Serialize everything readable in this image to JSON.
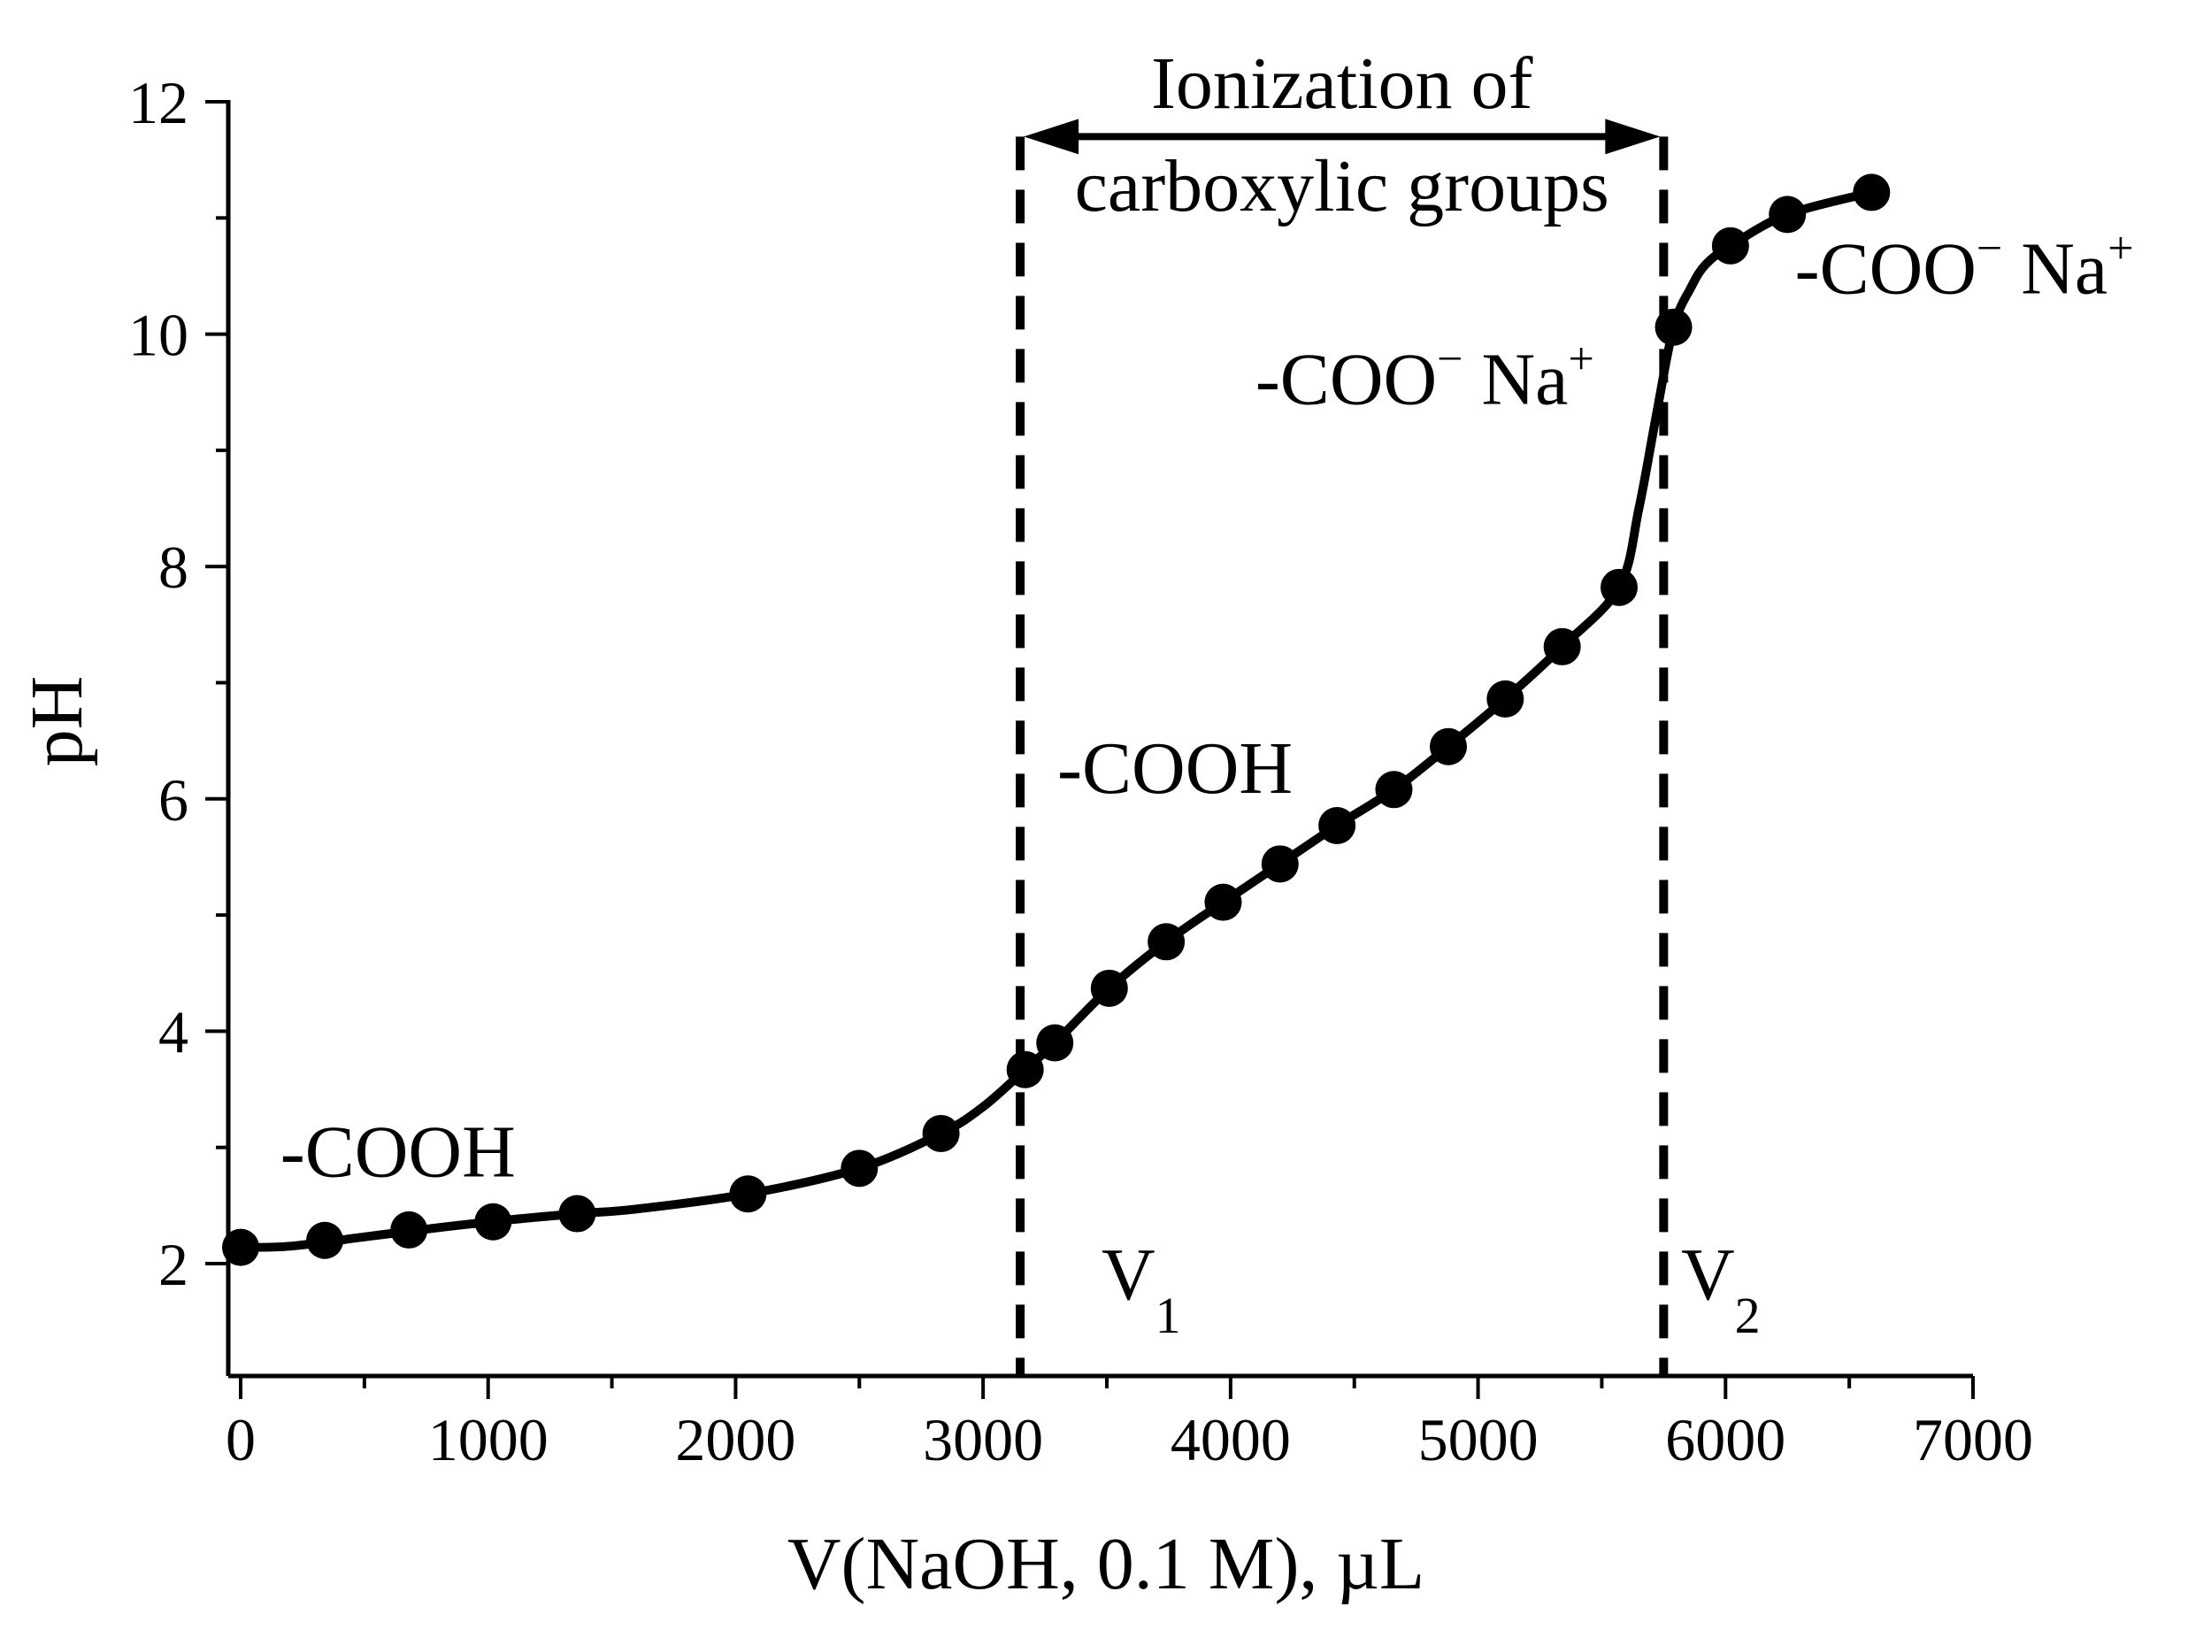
{
  "chart_data": {
    "type": "line",
    "xlabel": "V(NaOH, 0.1 M), µL",
    "ylabel": "pH",
    "xlim": [
      -50,
      7000
    ],
    "ylim": [
      1,
      12
    ],
    "x_ticks": [
      0,
      1000,
      2000,
      3000,
      4000,
      5000,
      6000,
      7000
    ],
    "y_ticks": [
      2,
      4,
      6,
      8,
      10,
      12
    ],
    "x_tick_labels": [
      "0",
      "1000",
      "2000",
      "3000",
      "4000",
      "5000",
      "6000",
      "7000"
    ],
    "y_tick_labels": [
      "2",
      "4",
      "6",
      "8",
      "10",
      "12"
    ],
    "grid": false,
    "series": [
      {
        "name": "pH titration curve",
        "x": [
          0,
          340,
          680,
          1020,
          1360,
          2050,
          2500,
          2830,
          3170,
          3290,
          3510,
          3740,
          3970,
          4200,
          4430,
          4660,
          4880,
          5110,
          5340,
          5570,
          5790,
          6020,
          6250,
          6590
        ],
        "y": [
          2.14,
          2.2,
          2.29,
          2.36,
          2.43,
          2.6,
          2.82,
          3.12,
          3.67,
          3.9,
          4.37,
          4.77,
          5.11,
          5.44,
          5.77,
          6.08,
          6.45,
          6.86,
          7.31,
          7.82,
          10.06,
          10.76,
          11.03,
          11.22
        ]
      }
    ],
    "curve": [
      [
        0,
        2.14
      ],
      [
        200,
        2.15
      ],
      [
        500,
        2.23
      ],
      [
        800,
        2.31
      ],
      [
        1100,
        2.38
      ],
      [
        1360,
        2.43
      ],
      [
        1600,
        2.47
      ],
      [
        2050,
        2.6
      ],
      [
        2500,
        2.82
      ],
      [
        2830,
        3.12
      ],
      [
        3000,
        3.35
      ],
      [
        3170,
        3.67
      ],
      [
        3290,
        3.9
      ],
      [
        3510,
        4.37
      ],
      [
        3740,
        4.77
      ],
      [
        3970,
        5.11
      ],
      [
        4200,
        5.44
      ],
      [
        4430,
        5.77
      ],
      [
        4660,
        6.08
      ],
      [
        4880,
        6.45
      ],
      [
        5110,
        6.86
      ],
      [
        5340,
        7.31
      ],
      [
        5570,
        7.82
      ],
      [
        5650,
        8.5
      ],
      [
        5720,
        9.3
      ],
      [
        5790,
        10.06
      ],
      [
        5860,
        10.4
      ],
      [
        5920,
        10.6
      ],
      [
        6020,
        10.76
      ],
      [
        6250,
        11.03
      ],
      [
        6590,
        11.22
      ]
    ],
    "reference_lines": [
      {
        "name": "V1",
        "x": 3150
      },
      {
        "name": "V2",
        "x": 5750
      }
    ],
    "range_arrow": {
      "x_from": 3150,
      "x_to": 5750,
      "y": 11.7,
      "label_line1": "Ionization of",
      "label_line2": "carboxylic groups"
    },
    "annotations": [
      {
        "text": "-COOH",
        "x": 160,
        "y": 2.75
      },
      {
        "text": "-COOH",
        "x": 3300,
        "y": 6.05
      },
      {
        "text": "-COO",
        "superscript": "−",
        "text2": " Na",
        "superscript2": "+",
        "x": 4100,
        "y": 9.4
      },
      {
        "text": "-COO",
        "superscript": "−",
        "text2": " Na",
        "superscript2": "+",
        "x": 6280,
        "y": 10.35
      }
    ],
    "v_labels": [
      {
        "text": "V",
        "subscript": "1",
        "x": 3350,
        "y": 1.7
      },
      {
        "text": "V",
        "subscript": "2",
        "x": 5800,
        "y": 1.7
      }
    ]
  }
}
